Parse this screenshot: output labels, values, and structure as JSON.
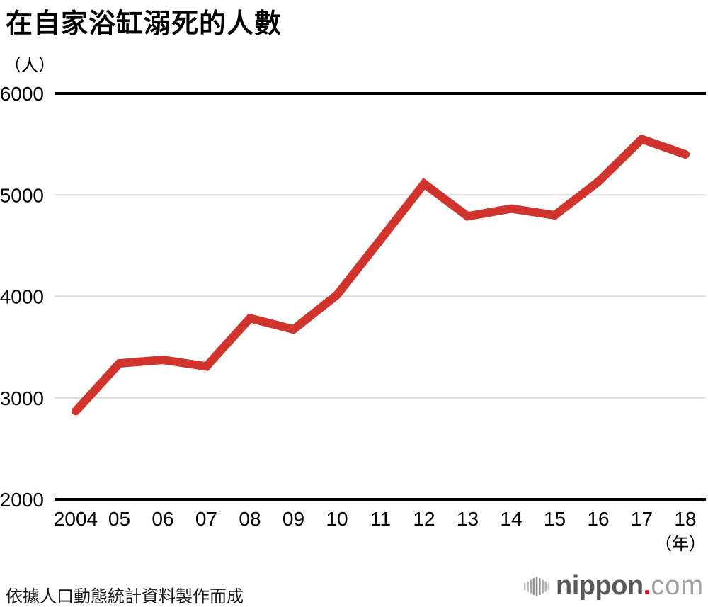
{
  "header": {
    "title": "在自家浴缸溺死的人數",
    "unit_label": "（人）"
  },
  "chart_data": {
    "type": "line",
    "title": "在自家浴缸溺死的人數",
    "ylabel": "（人）",
    "xlabel": "（年）",
    "categories": [
      "2004",
      "05",
      "06",
      "07",
      "08",
      "09",
      "10",
      "11",
      "12",
      "13",
      "14",
      "15",
      "16",
      "17",
      "18"
    ],
    "values": [
      2870,
      3340,
      3375,
      3310,
      3785,
      3675,
      4015,
      4560,
      5110,
      4790,
      4865,
      4800,
      5130,
      5550,
      5400
    ],
    "ylim": [
      2000,
      6000
    ],
    "yticks": [
      2000,
      3000,
      4000,
      5000,
      6000
    ],
    "grid": "horizontal-only",
    "legend": "none",
    "line_color": "#d0342c",
    "grid_color": "#d9d9d9",
    "axis_color": "#000000",
    "tick_label_color": "#000000"
  },
  "footer": {
    "source": "依據人口動態統計資料製作而成",
    "logo": {
      "icon": "audio-bars-icon",
      "name": "nippon",
      "dot": ".",
      "tld": "com",
      "name_color": "#595757",
      "dot_color": "#e60012",
      "tld_color": "#9fa0a0"
    }
  }
}
